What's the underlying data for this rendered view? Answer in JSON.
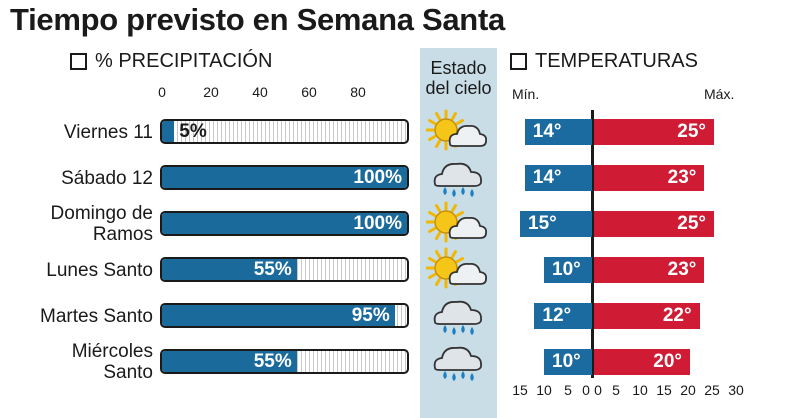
{
  "title": "Tiempo previsto en Semana Santa",
  "precip_label": "% PRECIPITACIÓN",
  "sky_label_line1": "Estado",
  "sky_label_line2": "del cielo",
  "temp_label": "TEMPERATURAS",
  "temp_min_label": "Mín.",
  "temp_max_label": "Máx.",
  "colors": {
    "precip": "#1a6a9c",
    "min": "#1b6aa0",
    "max": "#cf1c34",
    "sky_band": "#c8dde6"
  },
  "chart_data": [
    {
      "type": "bar",
      "title": "% PRECIPITACIÓN",
      "categories": [
        "Viernes 11",
        "Sábado 12",
        "Domingo de Ramos",
        "Lunes Santo",
        "Martes Santo",
        "Miércoles Santo"
      ],
      "values": [
        5,
        100,
        100,
        55,
        95,
        55
      ],
      "value_labels": [
        "5%",
        "100%",
        "100%",
        "55%",
        "95%",
        "55%"
      ],
      "xlim": [
        0,
        100
      ],
      "x_ticks": [
        "0",
        "20",
        "40",
        "60",
        "80"
      ]
    },
    {
      "type": "bar",
      "title": "TEMPERATURAS",
      "categories": [
        "Viernes 11",
        "Sábado 12",
        "Domingo de Ramos",
        "Lunes Santo",
        "Martes Santo",
        "Miércoles Santo"
      ],
      "series": [
        {
          "name": "Mín.",
          "values": [
            14,
            14,
            15,
            10,
            12,
            10
          ],
          "labels": [
            "14°",
            "14°",
            "15°",
            "10°",
            "12°",
            "10°"
          ]
        },
        {
          "name": "Máx.",
          "values": [
            25,
            23,
            25,
            23,
            22,
            20
          ],
          "labels": [
            "25°",
            "23°",
            "25°",
            "23°",
            "22°",
            "20°"
          ]
        }
      ],
      "xlim": [
        -15,
        30
      ],
      "x_ticks": [
        "15",
        "10",
        "5",
        "0",
        "0",
        "5",
        "10",
        "15",
        "20",
        "25",
        "30"
      ]
    }
  ],
  "sky_icons": [
    "sun-cloud-icon",
    "rain-cloud-icon",
    "sun-cloud-icon",
    "sun-cloud-icon",
    "rain-cloud-icon",
    "rain-cloud-icon"
  ]
}
